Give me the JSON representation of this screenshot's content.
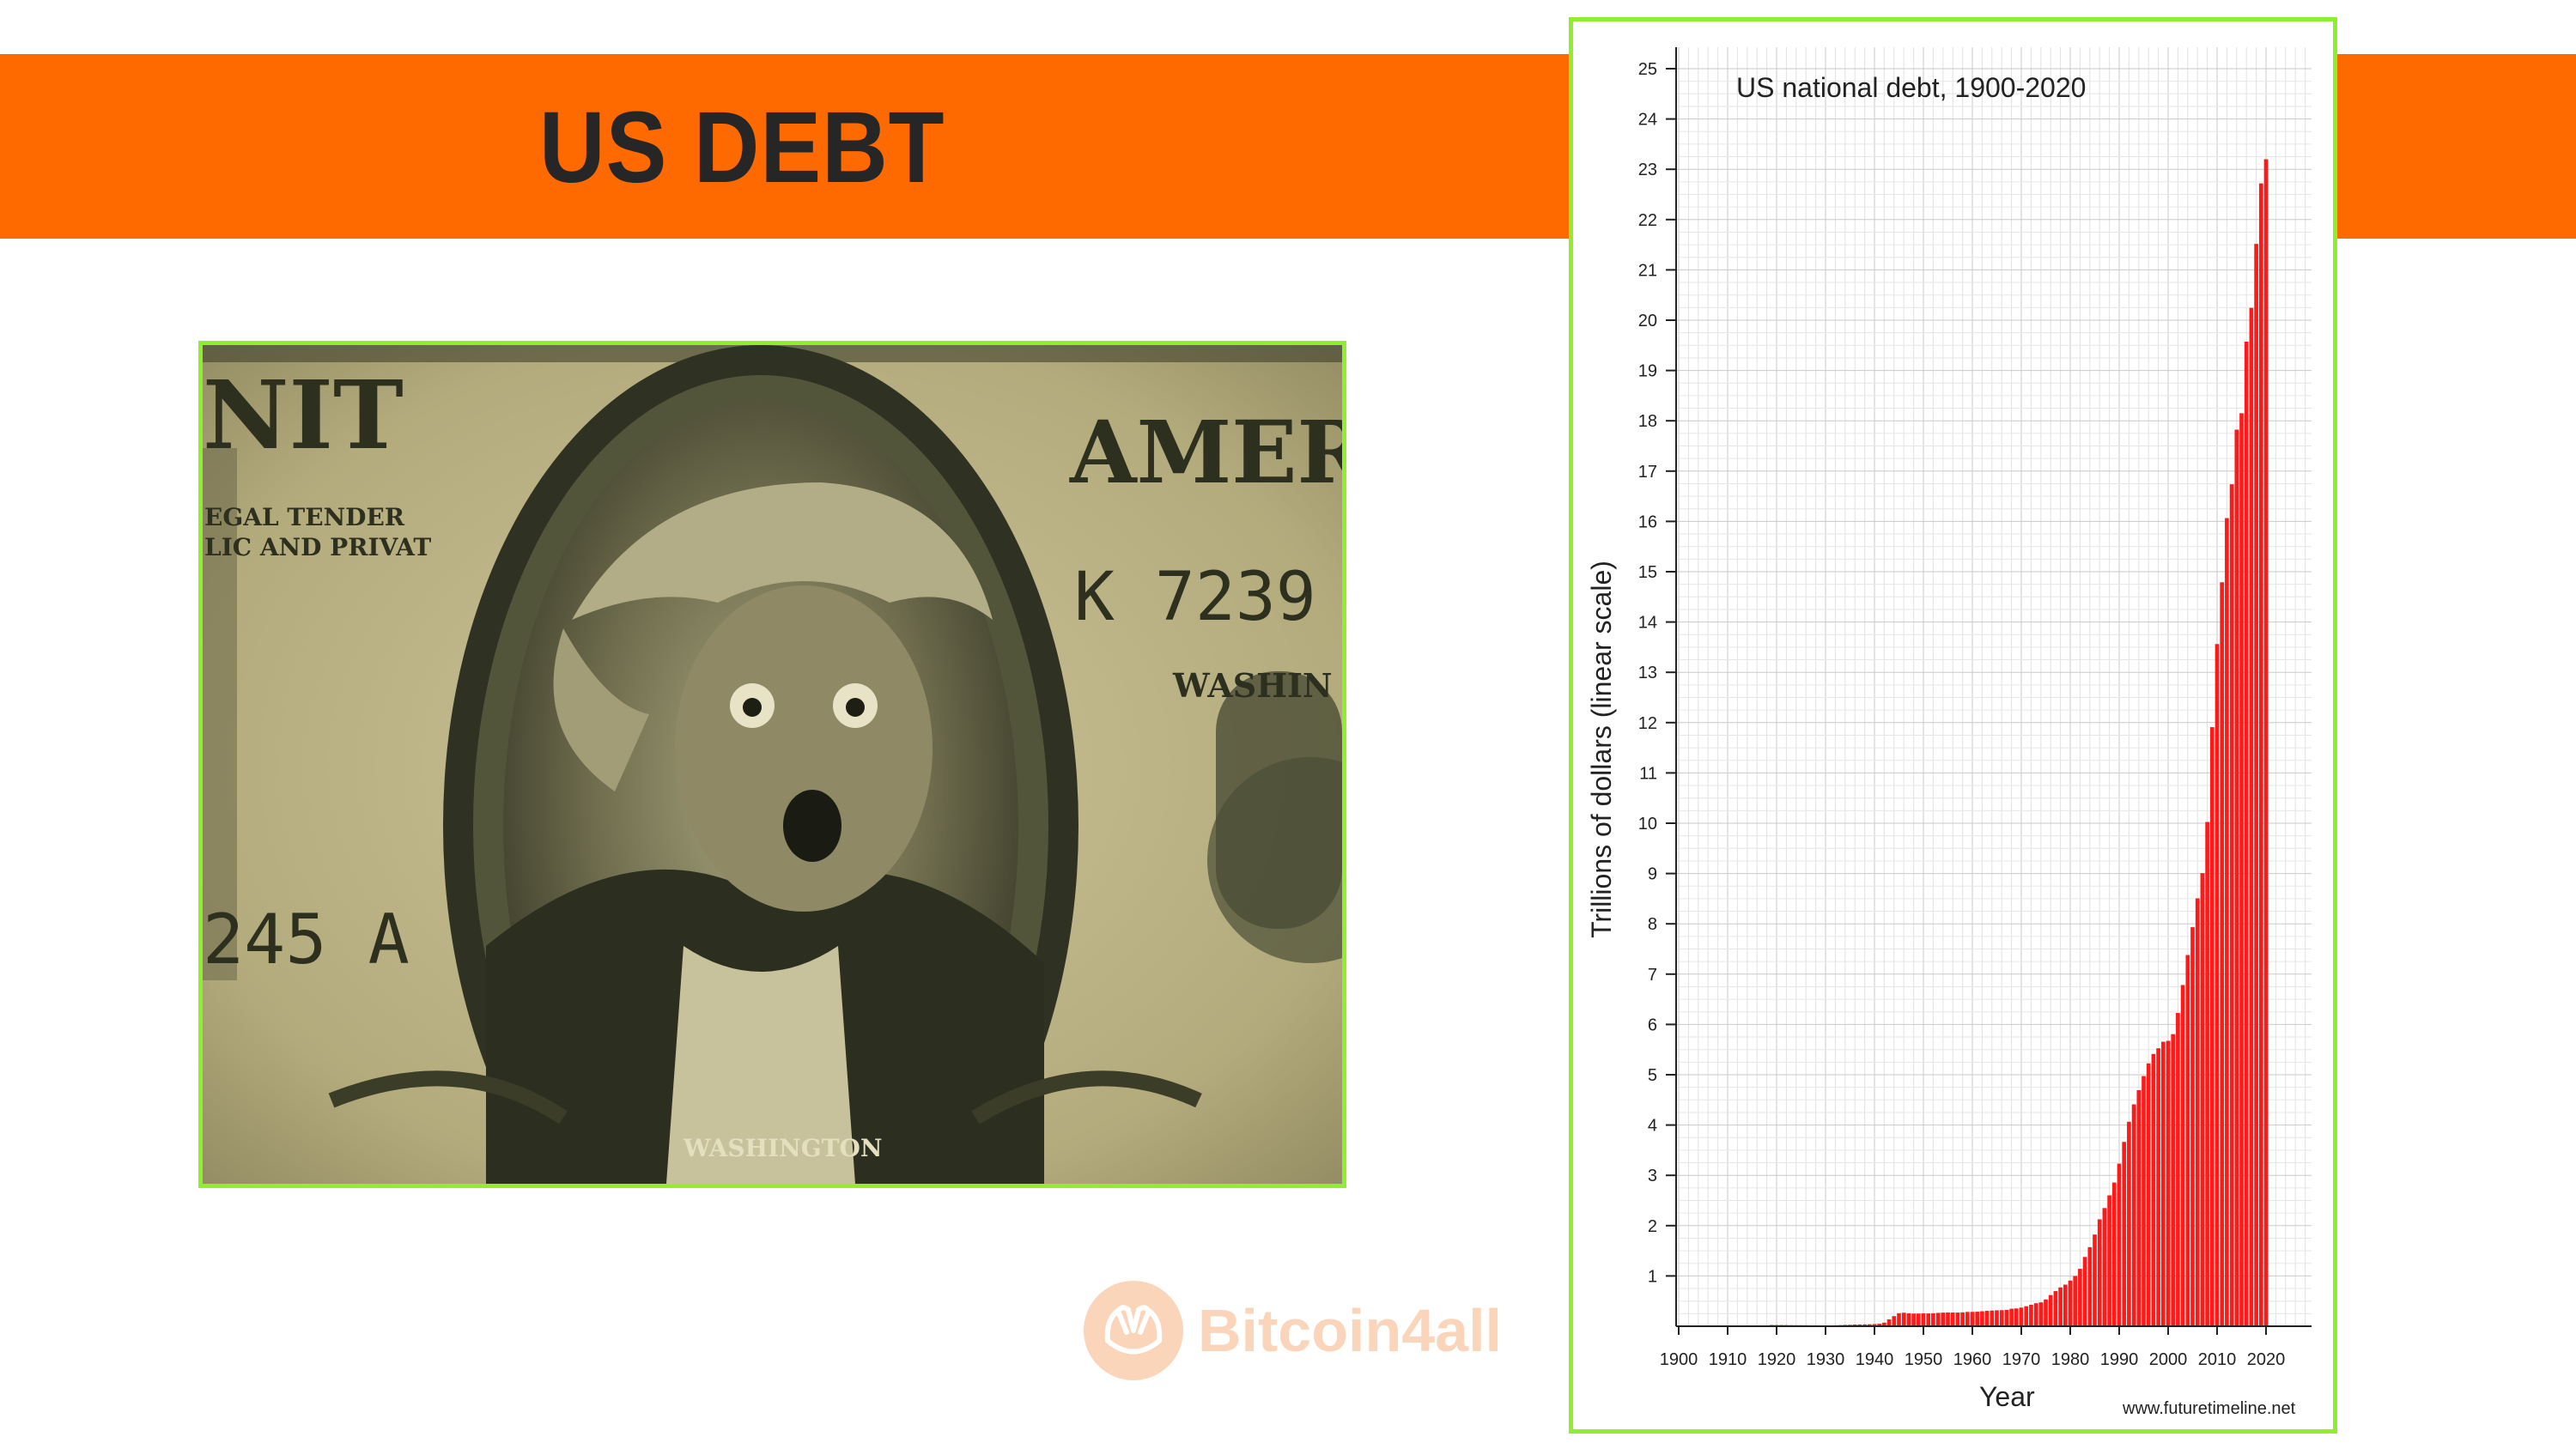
{
  "slide": {
    "title": "US DEBT",
    "watermark": "Bitcoin4all",
    "colors": {
      "banner": "#ff6a00",
      "title": "#262626",
      "frame_border": "#8fef2e",
      "bar": "#ff1a1a",
      "watermark": "#fbd5b9"
    }
  },
  "photo": {
    "serial_top": "K 7239",
    "serial_bottom": "245 A",
    "text_top_left": "NIT",
    "text_top_right": "AMER",
    "legal_line1": "EGAL TENDER",
    "legal_line2": "LIC AND PRIVAT",
    "city": "WASHIN",
    "name_ribbon": "WASHINGTON",
    "icons": [
      "dollar-bill-portrait",
      "hands-icon"
    ]
  },
  "chart_data": {
    "type": "bar",
    "title": "US national debt, 1900-2020",
    "xlabel": "Year",
    "ylabel": "Trillions of dollars (linear scale)",
    "source": "www.futuretimeline.net",
    "xlim": [
      1900,
      2020
    ],
    "ylim": [
      0,
      25
    ],
    "x_ticks": [
      1900,
      1910,
      1920,
      1930,
      1940,
      1950,
      1960,
      1970,
      1980,
      1990,
      2000,
      2010,
      2020
    ],
    "y_ticks": [
      1,
      2,
      3,
      4,
      5,
      6,
      7,
      8,
      9,
      10,
      11,
      12,
      13,
      14,
      15,
      16,
      17,
      18,
      19,
      20,
      21,
      22,
      23,
      24,
      25
    ],
    "grid": true,
    "legend": "none",
    "x": [
      1900,
      1901,
      1902,
      1903,
      1904,
      1905,
      1906,
      1907,
      1908,
      1909,
      1910,
      1911,
      1912,
      1913,
      1914,
      1915,
      1916,
      1917,
      1918,
      1919,
      1920,
      1921,
      1922,
      1923,
      1924,
      1925,
      1926,
      1927,
      1928,
      1929,
      1930,
      1931,
      1932,
      1933,
      1934,
      1935,
      1936,
      1937,
      1938,
      1939,
      1940,
      1941,
      1942,
      1943,
      1944,
      1945,
      1946,
      1947,
      1948,
      1949,
      1950,
      1951,
      1952,
      1953,
      1954,
      1955,
      1956,
      1957,
      1958,
      1959,
      1960,
      1961,
      1962,
      1963,
      1964,
      1965,
      1966,
      1967,
      1968,
      1969,
      1970,
      1971,
      1972,
      1973,
      1974,
      1975,
      1976,
      1977,
      1978,
      1979,
      1980,
      1981,
      1982,
      1983,
      1984,
      1985,
      1986,
      1987,
      1988,
      1989,
      1990,
      1991,
      1992,
      1993,
      1994,
      1995,
      1996,
      1997,
      1998,
      1999,
      2000,
      2001,
      2002,
      2003,
      2004,
      2005,
      2006,
      2007,
      2008,
      2009,
      2010,
      2011,
      2012,
      2013,
      2014,
      2015,
      2016,
      2017,
      2018,
      2019,
      2020
    ],
    "values": [
      0.002,
      0.002,
      0.002,
      0.002,
      0.002,
      0.002,
      0.002,
      0.002,
      0.002,
      0.002,
      0.002,
      0.002,
      0.002,
      0.002,
      0.002,
      0.003,
      0.003,
      0.006,
      0.012,
      0.025,
      0.024,
      0.024,
      0.023,
      0.022,
      0.021,
      0.021,
      0.02,
      0.018,
      0.018,
      0.017,
      0.016,
      0.017,
      0.019,
      0.023,
      0.027,
      0.029,
      0.034,
      0.036,
      0.037,
      0.04,
      0.043,
      0.049,
      0.072,
      0.137,
      0.201,
      0.259,
      0.269,
      0.258,
      0.252,
      0.253,
      0.257,
      0.255,
      0.259,
      0.266,
      0.271,
      0.274,
      0.273,
      0.272,
      0.276,
      0.285,
      0.286,
      0.289,
      0.298,
      0.306,
      0.312,
      0.317,
      0.32,
      0.326,
      0.348,
      0.354,
      0.371,
      0.398,
      0.427,
      0.458,
      0.475,
      0.533,
      0.62,
      0.699,
      0.772,
      0.827,
      0.908,
      0.998,
      1.142,
      1.377,
      1.572,
      1.823,
      2.125,
      2.35,
      2.602,
      2.857,
      3.233,
      3.665,
      4.065,
      4.411,
      4.693,
      4.974,
      5.225,
      5.413,
      5.526,
      5.656,
      5.674,
      5.807,
      6.228,
      6.783,
      7.379,
      7.933,
      8.507,
      9.008,
      10.025,
      11.91,
      13.562,
      14.79,
      16.066,
      16.738,
      17.824,
      18.151,
      19.573,
      20.245,
      21.516,
      22.72,
      23.2
    ]
  }
}
